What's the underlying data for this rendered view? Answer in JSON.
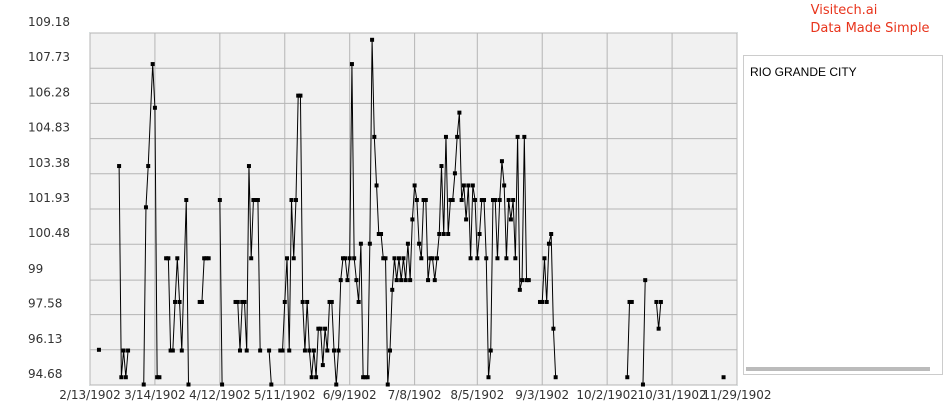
{
  "branding": {
    "name": "Visitech.ai",
    "tagline": "Data Made Simple"
  },
  "chart_data": {
    "type": "line",
    "xlim": [
      "1902-02-13",
      "1902-11-29"
    ],
    "xticks": [
      {
        "value": "1902-02-13",
        "label": "2/13/1902"
      },
      {
        "value": "1902-03-14",
        "label": "3/14/1902"
      },
      {
        "value": "1902-04-12",
        "label": "4/12/1902"
      },
      {
        "value": "1902-05-11",
        "label": "5/11/1902"
      },
      {
        "value": "1902-06-09",
        "label": "6/9/1902"
      },
      {
        "value": "1902-07-08",
        "label": "7/8/1902"
      },
      {
        "value": "1902-08-05",
        "label": "8/5/1902"
      },
      {
        "value": "1902-09-03",
        "label": "9/3/1902"
      },
      {
        "value": "1902-10-02",
        "label": "10/2/1902"
      },
      {
        "value": "1902-10-31",
        "label": "10/31/1902"
      },
      {
        "value": "1902-11-29",
        "label": "11/29/1902"
      }
    ],
    "ylim": [
      94.68,
      109.18
    ],
    "yticks": [
      94.68,
      96.13,
      97.58,
      99,
      100.48,
      101.93,
      103.38,
      104.83,
      106.28,
      107.73,
      109.18
    ],
    "grid": true,
    "x": [
      "1902-02-17",
      "1902-02-18",
      "1902-02-26",
      "1902-02-27",
      "1902-02-28",
      "1902-03-01",
      "1902-03-02",
      "1902-03-03",
      "1902-03-09",
      "1902-03-10",
      "1902-03-11",
      "1902-03-13",
      "1902-03-14",
      "1902-03-15",
      "1902-03-16",
      "1902-03-17",
      "1902-03-19",
      "1902-03-20",
      "1902-03-21",
      "1902-03-22",
      "1902-03-23",
      "1902-03-24",
      "1902-03-25",
      "1902-03-26",
      "1902-03-28",
      "1902-03-29",
      "1902-03-30",
      "1902-04-03",
      "1902-04-04",
      "1902-04-05",
      "1902-04-06",
      "1902-04-07",
      "1902-04-08",
      "1902-04-12",
      "1902-04-13",
      "1902-04-14",
      "1902-04-19",
      "1902-04-20",
      "1902-04-21",
      "1902-04-22",
      "1902-04-23",
      "1902-04-24",
      "1902-04-25",
      "1902-04-26",
      "1902-04-27",
      "1902-04-28",
      "1902-04-29",
      "1902-04-30",
      "1902-05-01",
      "1902-05-04",
      "1902-05-05",
      "1902-05-06",
      "1902-05-09",
      "1902-05-10",
      "1902-05-11",
      "1902-05-12",
      "1902-05-13",
      "1902-05-14",
      "1902-05-15",
      "1902-05-16",
      "1902-05-17",
      "1902-05-18",
      "1902-05-19",
      "1902-05-20",
      "1902-05-21",
      "1902-05-22",
      "1902-05-23",
      "1902-05-24",
      "1902-05-25",
      "1902-05-26",
      "1902-05-27",
      "1902-05-28",
      "1902-05-29",
      "1902-05-30",
      "1902-05-31",
      "1902-06-01",
      "1902-06-02",
      "1902-06-03",
      "1902-06-04",
      "1902-06-05",
      "1902-06-06",
      "1902-06-07",
      "1902-06-08",
      "1902-06-09",
      "1902-06-10",
      "1902-06-11",
      "1902-06-12",
      "1902-06-13",
      "1902-06-14",
      "1902-06-15",
      "1902-06-16",
      "1902-06-17",
      "1902-06-18",
      "1902-06-19",
      "1902-06-20",
      "1902-06-21",
      "1902-06-22",
      "1902-06-23",
      "1902-06-24",
      "1902-06-25",
      "1902-06-26",
      "1902-06-27",
      "1902-06-28",
      "1902-06-29",
      "1902-06-30",
      "1902-07-01",
      "1902-07-02",
      "1902-07-03",
      "1902-07-04",
      "1902-07-05",
      "1902-07-06",
      "1902-07-07",
      "1902-07-08",
      "1902-07-09",
      "1902-07-10",
      "1902-07-11",
      "1902-07-12",
      "1902-07-13",
      "1902-07-14",
      "1902-07-15",
      "1902-07-16",
      "1902-07-17",
      "1902-07-18",
      "1902-07-19",
      "1902-07-20",
      "1902-07-21",
      "1902-07-22",
      "1902-07-23",
      "1902-07-24",
      "1902-07-25",
      "1902-07-26",
      "1902-07-27",
      "1902-07-28",
      "1902-07-29",
      "1902-07-30",
      "1902-07-31",
      "1902-08-01",
      "1902-08-02",
      "1902-08-03",
      "1902-08-04",
      "1902-08-05",
      "1902-08-06",
      "1902-08-07",
      "1902-08-08",
      "1902-08-09",
      "1902-08-10",
      "1902-08-11",
      "1902-08-12",
      "1902-08-13",
      "1902-08-14",
      "1902-08-15",
      "1902-08-16",
      "1902-08-17",
      "1902-08-18",
      "1902-08-19",
      "1902-08-20",
      "1902-08-21",
      "1902-08-22",
      "1902-08-23",
      "1902-08-24",
      "1902-08-25",
      "1902-08-26",
      "1902-08-27",
      "1902-08-28",
      "1902-08-29",
      "1902-09-02",
      "1902-09-03",
      "1902-09-04",
      "1902-09-05",
      "1902-09-06",
      "1902-09-07",
      "1902-09-08",
      "1902-09-09",
      "1902-09-10",
      "1902-10-11",
      "1902-10-12",
      "1902-10-13",
      "1902-10-14",
      "1902-10-18",
      "1902-10-19",
      "1902-10-20",
      "1902-10-24",
      "1902-10-25",
      "1902-10-26",
      "1902-10-27",
      "1902-11-23"
    ],
    "series": [
      {
        "name": "RIO GRANDE CITY",
        "color": "#000000",
        "values": [
          96.13,
          null,
          103.7,
          95.0,
          96.1,
          95.0,
          96.1,
          null,
          94.7,
          102.0,
          103.7,
          107.9,
          106.1,
          95.0,
          95.0,
          null,
          99.9,
          99.9,
          96.1,
          96.1,
          98.1,
          99.9,
          98.1,
          96.1,
          102.3,
          94.7,
          null,
          98.1,
          98.1,
          99.9,
          99.9,
          99.9,
          null,
          102.3,
          94.7,
          null,
          98.1,
          98.1,
          96.1,
          98.1,
          98.1,
          96.1,
          103.7,
          99.9,
          102.3,
          102.3,
          102.3,
          96.1,
          null,
          96.1,
          94.7,
          null,
          96.1,
          96.1,
          98.1,
          99.9,
          96.1,
          102.3,
          99.9,
          102.3,
          106.6,
          106.6,
          98.1,
          96.1,
          98.1,
          96.1,
          95.0,
          96.1,
          95.0,
          97.0,
          97.0,
          95.5,
          97.0,
          96.1,
          98.1,
          98.1,
          96.1,
          94.7,
          96.1,
          99.0,
          99.9,
          99.9,
          99.0,
          99.9,
          107.9,
          99.9,
          99.0,
          98.1,
          100.5,
          95.0,
          95.0,
          95.0,
          100.5,
          108.9,
          104.9,
          102.9,
          100.9,
          100.9,
          99.9,
          99.9,
          94.7,
          96.1,
          98.6,
          99.9,
          99.0,
          99.9,
          99.0,
          99.9,
          99.0,
          100.5,
          99.0,
          101.5,
          102.9,
          102.3,
          100.5,
          99.9,
          102.3,
          102.3,
          99.0,
          99.9,
          99.9,
          99.0,
          99.9,
          100.9,
          103.7,
          100.9,
          104.9,
          100.9,
          102.3,
          102.3,
          103.4,
          104.9,
          105.9,
          102.3,
          102.9,
          101.5,
          102.9,
          99.9,
          102.9,
          102.3,
          99.9,
          100.9,
          102.3,
          102.3,
          99.9,
          95.0,
          96.1,
          102.3,
          102.3,
          99.9,
          102.3,
          103.9,
          102.9,
          99.9,
          102.3,
          101.5,
          102.3,
          99.9,
          104.9,
          98.6,
          99.0,
          104.9,
          99.0,
          99.0,
          null,
          98.1,
          98.1,
          99.9,
          98.1,
          100.5,
          100.9,
          97.0,
          95.0,
          null,
          95.0,
          98.1,
          98.1,
          null,
          94.7,
          99.0,
          null,
          98.1,
          97.0,
          98.1,
          null,
          95.0
        ]
      }
    ]
  }
}
